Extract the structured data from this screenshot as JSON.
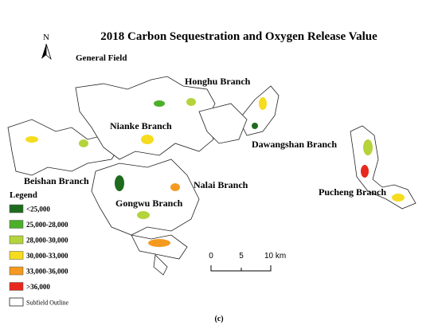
{
  "title": "2018 Carbon Sequestration and Oxygen Release Value",
  "subtitle": "General Field",
  "north": "N",
  "branches": [
    "Honghu Branch",
    "Nianke Branch",
    "Dawangshan Branch",
    "Beishan Branch",
    "Nalai Branch",
    "Gongwu Branch",
    "Pucheng Branch"
  ],
  "legend": {
    "title": "Legend",
    "items": [
      {
        "label": "<25,000",
        "color": "#1e6b1e"
      },
      {
        "label": "25,000-28,000",
        "color": "#4caf2a"
      },
      {
        "label": "28,000-30,000",
        "color": "#b5d33a"
      },
      {
        "label": "30,000-33,000",
        "color": "#f5dc1e"
      },
      {
        "label": "33,000-36,000",
        "color": "#f59a1e"
      },
      {
        "label": ">36,000",
        "color": "#e8281e"
      }
    ],
    "outline": "Subfield Outline"
  },
  "scale": {
    "ticks": [
      "0",
      "5",
      "10 km"
    ]
  },
  "caption": "(c)"
}
